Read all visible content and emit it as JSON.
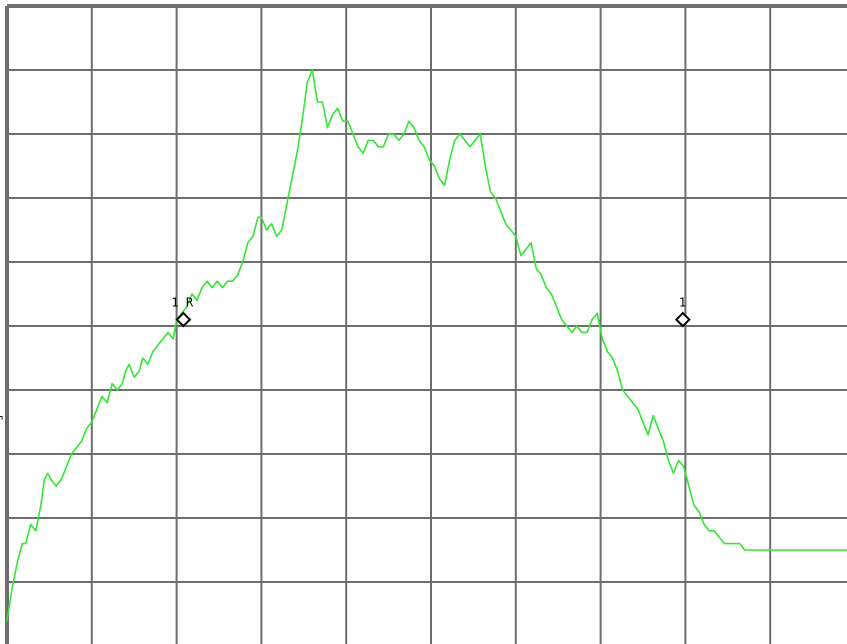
{
  "chart_data": {
    "type": "line",
    "title": "",
    "xlabel": "",
    "ylabel": "",
    "xlim": [
      0,
      10
    ],
    "ylim": [
      0,
      10
    ],
    "grid": true,
    "divisions": {
      "x": 10,
      "y": 10
    },
    "series": [
      {
        "color": "#33e633",
        "x": [
          0.0,
          0.06,
          0.12,
          0.18,
          0.22,
          0.28,
          0.34,
          0.4,
          0.44,
          0.48,
          0.52,
          0.58,
          0.64,
          0.7,
          0.76,
          0.82,
          0.88,
          0.94,
          1.0,
          1.06,
          1.12,
          1.18,
          1.24,
          1.3,
          1.36,
          1.4,
          1.44,
          1.5,
          1.56,
          1.6,
          1.66,
          1.72,
          1.78,
          1.84,
          1.9,
          1.96,
          2.0,
          2.06,
          2.12,
          2.18,
          2.24,
          2.3,
          2.36,
          2.42,
          2.48,
          2.54,
          2.6,
          2.66,
          2.72,
          2.78,
          2.84,
          2.9,
          2.96,
          3.0,
          3.06,
          3.12,
          3.18,
          3.24,
          3.3,
          3.36,
          3.42,
          3.48,
          3.54,
          3.6,
          3.66,
          3.72,
          3.78,
          3.84,
          3.9,
          3.96,
          4.02,
          4.08,
          4.14,
          4.2,
          4.26,
          4.32,
          4.38,
          4.44,
          4.5,
          4.56,
          4.62,
          4.68,
          4.74,
          4.8,
          4.86,
          4.92,
          4.98,
          5.04,
          5.1,
          5.16,
          5.22,
          5.28,
          5.34,
          5.4,
          5.46,
          5.52,
          5.58,
          5.64,
          5.7,
          5.76,
          5.82,
          5.88,
          5.94,
          6.0,
          6.06,
          6.12,
          6.18,
          6.24,
          6.3,
          6.36,
          6.42,
          6.48,
          6.54,
          6.6,
          6.66,
          6.72,
          6.78,
          6.84,
          6.9,
          6.96,
          7.02,
          7.08,
          7.14,
          7.2,
          7.26,
          7.32,
          7.38,
          7.44,
          7.5,
          7.56,
          7.62,
          7.68,
          7.74,
          7.8,
          7.86,
          7.92,
          7.98,
          8.04,
          8.1,
          8.16,
          8.22,
          8.28,
          8.34,
          8.4,
          8.46,
          8.52,
          8.58,
          8.64,
          8.7,
          8.76,
          8.82,
          8.88,
          8.94,
          9.0,
          9.06,
          9.12,
          9.18,
          9.24,
          9.3,
          9.36,
          9.42,
          9.48,
          9.54,
          9.6,
          9.66,
          9.72,
          9.78,
          9.84,
          9.9,
          9.96,
          10.0
        ],
        "y": [
          0.4,
          0.9,
          1.3,
          1.6,
          1.6,
          1.9,
          1.8,
          2.2,
          2.6,
          2.7,
          2.6,
          2.5,
          2.6,
          2.8,
          3.0,
          3.1,
          3.2,
          3.4,
          3.5,
          3.7,
          3.9,
          3.8,
          4.1,
          4.0,
          4.1,
          4.3,
          4.4,
          4.2,
          4.3,
          4.5,
          4.4,
          4.6,
          4.7,
          4.8,
          4.9,
          4.8,
          5.1,
          5.2,
          5.3,
          5.5,
          5.4,
          5.6,
          5.7,
          5.6,
          5.7,
          5.6,
          5.7,
          5.7,
          5.8,
          6.0,
          6.3,
          6.4,
          6.7,
          6.7,
          6.5,
          6.6,
          6.4,
          6.5,
          6.9,
          7.3,
          7.7,
          8.2,
          8.8,
          9.0,
          8.5,
          8.5,
          8.1,
          8.3,
          8.4,
          8.2,
          8.2,
          8.0,
          7.8,
          7.7,
          7.9,
          7.9,
          7.8,
          7.8,
          8.0,
          8.0,
          7.9,
          8.0,
          8.2,
          8.1,
          7.9,
          7.8,
          7.6,
          7.5,
          7.3,
          7.2,
          7.6,
          7.9,
          8.0,
          7.9,
          7.8,
          7.9,
          8.0,
          7.5,
          7.1,
          7.0,
          6.8,
          6.6,
          6.5,
          6.4,
          6.1,
          6.2,
          6.3,
          5.9,
          5.8,
          5.6,
          5.5,
          5.3,
          5.1,
          5.0,
          4.9,
          5.0,
          4.9,
          4.9,
          5.1,
          5.2,
          4.8,
          4.6,
          4.5,
          4.3,
          4.0,
          3.9,
          3.8,
          3.7,
          3.5,
          3.3,
          3.6,
          3.4,
          3.2,
          2.9,
          2.7,
          2.9,
          2.8,
          2.5,
          2.2,
          2.1,
          1.9,
          1.8,
          1.8,
          1.7,
          1.6,
          1.6,
          1.6,
          1.6,
          1.5,
          1.5,
          1.5,
          1.5,
          1.5,
          1.5,
          1.5,
          1.5,
          1.5,
          1.5,
          1.5,
          1.5,
          1.5,
          1.5,
          1.5,
          1.5,
          1.5,
          1.5,
          1.5,
          1.5,
          1.5,
          1.5,
          1.5
        ]
      }
    ],
    "markers": [
      {
        "label": "1R",
        "x": 2.08,
        "y": 5.1
      },
      {
        "label": "1",
        "x": 7.97,
        "y": 5.1
      }
    ],
    "edge_text": "F"
  },
  "colors": {
    "background": "#ffffff",
    "grid": "#6e6e6e",
    "trace": "#33e633",
    "marker": "#000000"
  }
}
